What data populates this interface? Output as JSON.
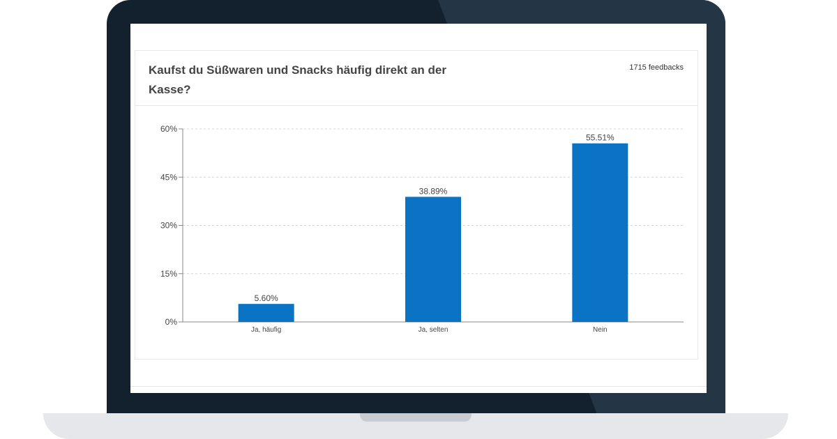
{
  "question": "Kaufst du Süßwaren und Snacks häufig direkt an der Kasse?",
  "feedbacks": "1715 feedbacks",
  "colors": {
    "bar": "#0a73c4",
    "grid": "#d4d4d4",
    "axis": "#888888",
    "text": "#444444"
  },
  "chart_data": {
    "type": "bar",
    "categories": [
      "Ja, häufig",
      "Ja, selten",
      "Nein"
    ],
    "values": [
      5.6,
      38.89,
      55.51
    ],
    "value_labels": [
      "5.60%",
      "38.89%",
      "55.51%"
    ],
    "ylim": [
      0,
      60
    ],
    "yticks": [
      0,
      15,
      30,
      45,
      60
    ],
    "ytick_labels": [
      "0%",
      "15%",
      "30%",
      "45%",
      "60%"
    ],
    "grid": true
  }
}
